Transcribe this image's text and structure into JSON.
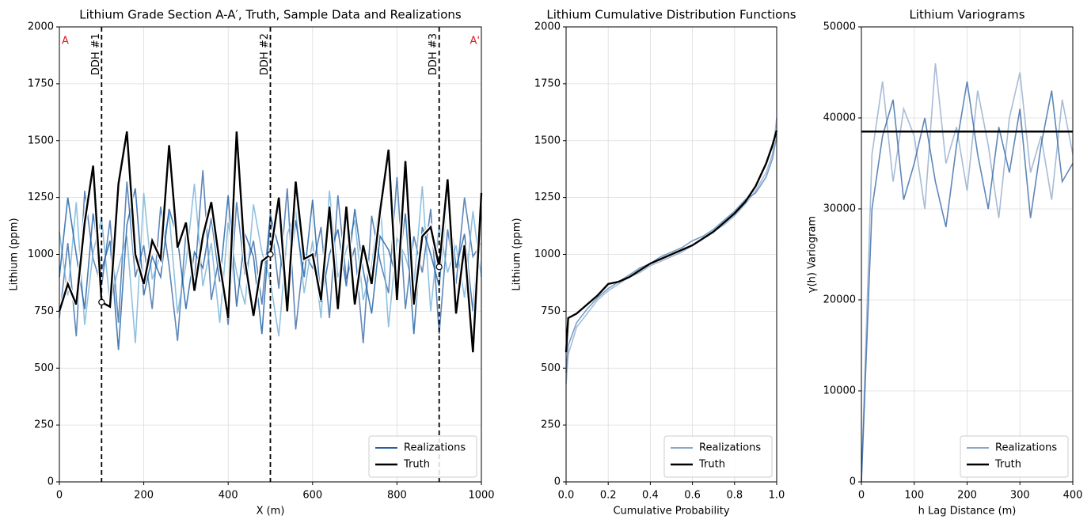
{
  "chart_data": [
    {
      "type": "line",
      "title": "Lithium Grade Section A-A′, Truth, Sample Data and Realizations",
      "x_label": "X (m)",
      "y_label": "Lithium (ppm)",
      "x": [
        0,
        20,
        40,
        60,
        80,
        100,
        120,
        140,
        160,
        180,
        200,
        220,
        240,
        260,
        280,
        300,
        320,
        340,
        360,
        380,
        400,
        420,
        440,
        460,
        480,
        500,
        520,
        540,
        560,
        580,
        600,
        620,
        640,
        660,
        680,
        700,
        720,
        740,
        760,
        780,
        800,
        820,
        840,
        860,
        880,
        900,
        920,
        940,
        960,
        980,
        1000
      ],
      "series": [
        {
          "name": "Realizations",
          "color": "#2a5fa0",
          "values": [
            720,
            1050,
            640,
            1280,
            980,
            860,
            1150,
            700,
            1320,
            900,
            1040,
            760,
            1210,
            950,
            620,
            1100,
            880,
            1370,
            800,
            1000,
            690,
            1230,
            910,
            1060,
            780,
            1180,
            850,
            1290,
            670,
            1010,
            940,
            1120,
            720,
            1260,
            890,
            1030,
            610,
            1170,
            970,
            830,
            1340,
            760,
            1080,
            920,
            1200,
            650,
            1110,
            870,
            1250,
            990,
            1050
          ]
        },
        {
          "color": "#6baed6",
          "values": [
            1100,
            820,
            1230,
            690,
            1010,
            1160,
            780,
            940,
            1080,
            610,
            1270,
            890,
            1000,
            1180,
            740,
            960,
            1310,
            860,
            1050,
            700,
            1140,
            920,
            780,
            1220,
            1010,
            880,
            640,
            1090,
            1190,
            830,
            1060,
            720,
            1280,
            900,
            1020,
            1150,
            800,
            950,
            1240,
            680,
            1070,
            990,
            860,
            1300,
            750,
            1130,
            920,
            1040,
            810,
            1190,
            900
          ]
        },
        {
          "color": "#08519c",
          "values": [
            900,
            1250,
            1000,
            760,
            1180,
            930,
            1060,
            580,
            1130,
            1290,
            820,
            990,
            900,
            1200,
            1070,
            760,
            1010,
            940,
            1160,
            880,
            1260,
            770,
            1090,
            990,
            650,
            1170,
            1030,
            820,
            1150,
            900,
            1240,
            790,
            1000,
            1110,
            860,
            1200,
            930,
            740,
            1080,
            1020,
            890,
            1180,
            650,
            1120,
            1000,
            860,
            1270,
            940,
            1090,
            750,
            1230
          ]
        },
        {
          "name": "Truth",
          "color": "#000000",
          "halo": true,
          "values": [
            750,
            870,
            780,
            1140,
            1390,
            790,
            770,
            1310,
            1540,
            1000,
            870,
            1060,
            980,
            1480,
            1030,
            1140,
            840,
            1080,
            1230,
            960,
            720,
            1540,
            970,
            730,
            970,
            1000,
            1250,
            750,
            1320,
            980,
            1000,
            800,
            1210,
            760,
            1210,
            780,
            1040,
            870,
            1190,
            1460,
            800,
            1410,
            780,
            1080,
            1120,
            945,
            1330,
            740,
            1040,
            570,
            1270
          ]
        }
      ],
      "vlines": [
        {
          "x": 100,
          "label": "DDH #1"
        },
        {
          "x": 500,
          "label": "DDH #2"
        },
        {
          "x": 900,
          "label": "DDH #3"
        }
      ],
      "samples": {
        "x": [
          100,
          500,
          900
        ],
        "values": [
          790,
          1000,
          945
        ]
      },
      "corner_labels": [
        "A",
        "A'"
      ],
      "corner_color": "#e31a1c",
      "xlim": [
        0,
        1000
      ],
      "xticks": [
        0,
        200,
        400,
        600,
        800,
        1000
      ],
      "ylim": [
        0,
        2000
      ],
      "yticks": [
        0,
        250,
        500,
        750,
        1000,
        1250,
        1500,
        1750,
        2000
      ],
      "grid": true,
      "legend": "lower-right"
    },
    {
      "type": "line",
      "title": "Lithium Cumulative Distribution Functions",
      "x_label": "Cumulative Probability",
      "y_label": "Lithium (ppm)",
      "x": [
        0,
        0.01,
        0.05,
        0.1,
        0.15,
        0.2,
        0.25,
        0.3,
        0.35,
        0.4,
        0.45,
        0.5,
        0.55,
        0.6,
        0.65,
        0.7,
        0.75,
        0.8,
        0.85,
        0.9,
        0.95,
        0.98,
        1
      ],
      "series": [
        {
          "name": "Realizations",
          "color": "#8aa6c8",
          "values": [
            430,
            560,
            680,
            740,
            800,
            840,
            870,
            900,
            920,
            950,
            970,
            990,
            1010,
            1040,
            1070,
            1100,
            1130,
            1170,
            1220,
            1280,
            1360,
            1440,
            1600
          ]
        },
        {
          "color": "#4a7fb5",
          "values": [
            480,
            600,
            700,
            760,
            810,
            850,
            880,
            910,
            940,
            960,
            990,
            1010,
            1030,
            1060,
            1080,
            1110,
            1150,
            1190,
            1240,
            1270,
            1340,
            1420,
            1520
          ]
        },
        {
          "name": "Truth",
          "color": "#000000",
          "values": [
            570,
            720,
            740,
            780,
            820,
            870,
            880,
            900,
            930,
            960,
            980,
            1000,
            1020,
            1040,
            1070,
            1100,
            1140,
            1180,
            1230,
            1300,
            1400,
            1480,
            1545
          ]
        }
      ],
      "xlim": [
        0,
        1
      ],
      "xticks": [
        {
          "value": 0,
          "label": "0.0"
        },
        0.2,
        0.4,
        0.6,
        0.8,
        {
          "value": 1,
          "label": "1.0"
        }
      ],
      "ylim": [
        0,
        2000
      ],
      "yticks": [
        0,
        250,
        500,
        750,
        1000,
        1250,
        1500,
        1750,
        2000
      ],
      "grid": true,
      "legend": "lower-right"
    },
    {
      "type": "line",
      "title": "Lithium Variograms",
      "x_label": "h Lag Distance (m)",
      "y_label": "γ(h) Variogram",
      "x": [
        0,
        20,
        40,
        60,
        80,
        100,
        120,
        140,
        160,
        180,
        200,
        220,
        240,
        260,
        280,
        300,
        320,
        340,
        360,
        380,
        400
      ],
      "series": [
        {
          "name": "Realizations",
          "color": "#8aa6c8",
          "values": [
            0,
            36000,
            44000,
            33000,
            41000,
            38000,
            30000,
            46000,
            35000,
            39000,
            32000,
            43000,
            37000,
            29000,
            40000,
            45000,
            34000,
            38000,
            31000,
            42000,
            36000
          ]
        },
        {
          "color": "#2a5fa0",
          "values": [
            0,
            30000,
            38000,
            42000,
            31000,
            35000,
            40000,
            33000,
            28000,
            37000,
            44000,
            36000,
            30000,
            39000,
            34000,
            41000,
            29000,
            37000,
            43000,
            33000,
            35000
          ]
        },
        {
          "name": "Truth",
          "color": "#000000",
          "x": [
            0,
            400
          ],
          "values": [
            38500,
            38500
          ]
        }
      ],
      "xlim": [
        0,
        400
      ],
      "xticks": [
        0,
        100,
        200,
        300,
        400
      ],
      "ylim": [
        0,
        50000
      ],
      "yticks": [
        0,
        10000,
        20000,
        30000,
        40000,
        50000
      ],
      "grid": true,
      "legend": "lower-right"
    }
  ]
}
